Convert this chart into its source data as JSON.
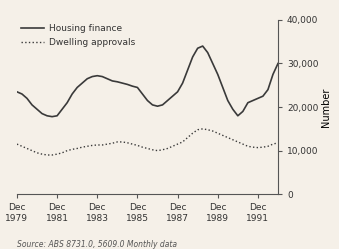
{
  "ylabel_right": "Number",
  "source_text": "Source: ABS 8731.0, 5609.0 Monthly data",
  "legend_housing": "Housing finance",
  "legend_dwellings": "Dwelling approvals",
  "ylim": [
    0,
    40000
  ],
  "yticks": [
    0,
    10000,
    20000,
    30000,
    40000
  ],
  "xtick_years": [
    1979,
    1981,
    1983,
    1985,
    1987,
    1989,
    1991
  ],
  "xtick_labels": [
    "Dec\n1979",
    "Dec\n1981",
    "Dec\n1983",
    "Dec\n1985",
    "Dec\n1987",
    "Dec\n1989",
    "Dec\n1991"
  ],
  "hf_x": [
    1979.0,
    1979.25,
    1979.5,
    1979.75,
    1980.0,
    1980.25,
    1980.5,
    1980.75,
    1981.0,
    1981.25,
    1981.5,
    1981.75,
    1982.0,
    1982.25,
    1982.5,
    1982.75,
    1983.0,
    1983.25,
    1983.5,
    1983.75,
    1984.0,
    1984.25,
    1984.5,
    1984.75,
    1985.0,
    1985.25,
    1985.5,
    1985.75,
    1986.0,
    1986.25,
    1986.5,
    1986.75,
    1987.0,
    1987.25,
    1987.5,
    1987.75,
    1988.0,
    1988.25,
    1988.5,
    1988.75,
    1989.0,
    1989.25,
    1989.5,
    1989.75,
    1990.0,
    1990.25,
    1990.5,
    1990.75,
    1991.0,
    1991.25,
    1991.5,
    1991.75,
    1992.0
  ],
  "hf_y": [
    23500,
    23000,
    22000,
    20500,
    19500,
    18500,
    18000,
    17800,
    18000,
    19500,
    21000,
    23000,
    24500,
    25500,
    26500,
    27000,
    27200,
    27000,
    26500,
    26000,
    25800,
    25500,
    25200,
    24800,
    24500,
    23000,
    21500,
    20500,
    20200,
    20500,
    21500,
    22500,
    23500,
    25500,
    28500,
    31500,
    33500,
    34000,
    32500,
    30000,
    27500,
    24500,
    21500,
    19500,
    18000,
    19000,
    21000,
    21500,
    22000,
    22500,
    24000,
    27500,
    30000
  ],
  "da_x": [
    1979.0,
    1979.25,
    1979.5,
    1979.75,
    1980.0,
    1980.25,
    1980.5,
    1980.75,
    1981.0,
    1981.25,
    1981.5,
    1981.75,
    1982.0,
    1982.25,
    1982.5,
    1982.75,
    1983.0,
    1983.25,
    1983.5,
    1983.75,
    1984.0,
    1984.25,
    1984.5,
    1984.75,
    1985.0,
    1985.25,
    1985.5,
    1985.75,
    1986.0,
    1986.25,
    1986.5,
    1986.75,
    1987.0,
    1987.25,
    1987.5,
    1987.75,
    1988.0,
    1988.25,
    1988.5,
    1988.75,
    1989.0,
    1989.25,
    1989.5,
    1989.75,
    1990.0,
    1990.25,
    1990.5,
    1990.75,
    1991.0,
    1991.25,
    1991.5,
    1991.75,
    1992.0
  ],
  "da_y": [
    11500,
    11000,
    10500,
    10000,
    9500,
    9200,
    9000,
    9000,
    9200,
    9500,
    10000,
    10300,
    10500,
    10800,
    11000,
    11200,
    11300,
    11300,
    11500,
    11700,
    12000,
    12000,
    11800,
    11500,
    11200,
    10800,
    10500,
    10200,
    10000,
    10200,
    10500,
    11000,
    11500,
    12000,
    13000,
    14000,
    14800,
    15000,
    14800,
    14500,
    14000,
    13500,
    13000,
    12500,
    12000,
    11500,
    11000,
    10800,
    10700,
    10800,
    11000,
    11500,
    11800
  ],
  "line_color": "#3a3a3a",
  "background_color": "#f5f0e8"
}
